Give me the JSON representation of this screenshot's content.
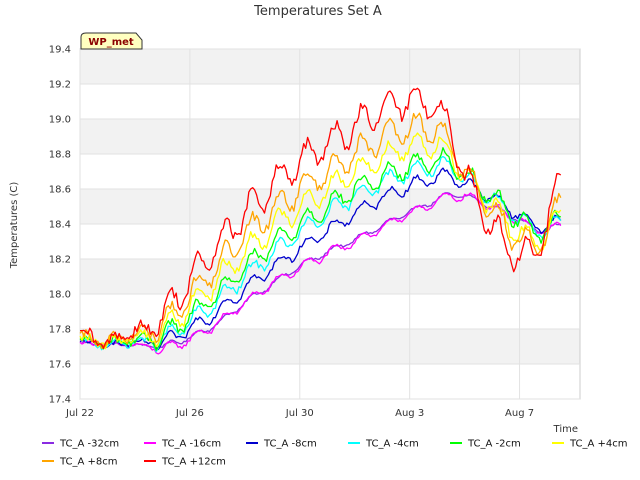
{
  "chart_data": {
    "type": "line",
    "title": "Temperatures Set A",
    "xlabel": "Time",
    "ylabel": "Temperatures (C)",
    "badge": "WP_met",
    "xlim": [
      0,
      18.2
    ],
    "ylim": [
      17.4,
      19.4
    ],
    "x_ticks": [
      {
        "label": "Jul 22",
        "value": 0
      },
      {
        "label": "Jul 26",
        "value": 4
      },
      {
        "label": "Jul 30",
        "value": 8
      },
      {
        "label": "Aug 3",
        "value": 12
      },
      {
        "label": "Aug 7",
        "value": 16
      }
    ],
    "y_ticks": [
      "17.4",
      "17.6",
      "17.8",
      "18.0",
      "18.2",
      "18.4",
      "18.6",
      "18.8",
      "19.0",
      "19.2",
      "19.4"
    ],
    "grid": true,
    "legend_position": "bottom",
    "x_units": "days since Jul 22",
    "x": [
      0,
      1,
      2,
      2.7,
      3,
      4,
      5,
      6,
      7,
      8,
      9,
      10,
      11,
      12,
      13,
      13.5,
      14,
      15,
      16,
      16.5,
      17,
      17.5
    ],
    "series": [
      {
        "name": "TC_A -32cm",
        "color": "#8a2be2",
        "values": [
          17.72,
          17.71,
          17.71,
          17.7,
          17.7,
          17.75,
          17.83,
          17.95,
          18.06,
          18.16,
          18.24,
          18.31,
          18.39,
          18.47,
          18.54,
          18.57,
          18.56,
          18.5,
          18.42,
          18.38,
          18.36,
          18.4
        ]
      },
      {
        "name": "TC_A -16cm",
        "color": "#ff00ff",
        "values": [
          17.72,
          17.71,
          17.71,
          17.69,
          17.68,
          17.74,
          17.83,
          17.95,
          18.06,
          18.15,
          18.23,
          18.3,
          18.38,
          18.46,
          18.53,
          18.56,
          18.56,
          18.5,
          18.42,
          18.37,
          18.36,
          18.39
        ]
      },
      {
        "name": "TC_A -8cm",
        "color": "#0000cd",
        "values": [
          17.72,
          17.71,
          17.72,
          17.72,
          17.72,
          17.8,
          17.9,
          18.03,
          18.15,
          18.26,
          18.36,
          18.46,
          18.55,
          18.62,
          18.67,
          18.68,
          18.63,
          18.55,
          18.45,
          18.4,
          18.38,
          18.42
        ]
      },
      {
        "name": "TC_A -4cm",
        "color": "#00ffff",
        "values": [
          17.73,
          17.71,
          17.73,
          17.73,
          17.74,
          17.84,
          17.96,
          18.1,
          18.23,
          18.35,
          18.46,
          18.56,
          18.64,
          18.7,
          18.73,
          18.72,
          18.66,
          18.55,
          18.43,
          18.38,
          18.36,
          18.42
        ]
      },
      {
        "name": "TC_A -2cm",
        "color": "#00ff00",
        "values": [
          17.73,
          17.72,
          17.74,
          17.74,
          17.76,
          17.87,
          18.0,
          18.15,
          18.28,
          18.4,
          18.5,
          18.6,
          18.67,
          18.73,
          18.77,
          18.75,
          18.68,
          18.56,
          18.42,
          18.37,
          18.36,
          18.44
        ]
      },
      {
        "name": "TC_A +4cm",
        "color": "#ffff00",
        "values": [
          17.74,
          17.72,
          17.76,
          17.76,
          17.79,
          17.93,
          18.08,
          18.24,
          18.38,
          18.5,
          18.6,
          18.7,
          18.78,
          18.85,
          18.86,
          18.8,
          18.68,
          18.5,
          18.34,
          18.3,
          18.32,
          18.48
        ]
      },
      {
        "name": "TC_A +8cm",
        "color": "#ffa500",
        "values": [
          17.75,
          17.72,
          17.78,
          17.78,
          17.82,
          17.99,
          18.16,
          18.33,
          18.48,
          18.6,
          18.7,
          18.8,
          18.89,
          18.95,
          18.94,
          18.86,
          18.7,
          18.48,
          18.3,
          18.28,
          18.33,
          18.55
        ]
      },
      {
        "name": "TC_A +12cm",
        "color": "#ff0000",
        "values": [
          17.76,
          17.72,
          17.8,
          17.8,
          17.88,
          18.08,
          18.28,
          18.46,
          18.62,
          18.75,
          18.86,
          18.96,
          19.05,
          19.12,
          19.06,
          18.92,
          18.68,
          18.38,
          18.2,
          18.24,
          18.38,
          18.68
        ]
      }
    ]
  }
}
